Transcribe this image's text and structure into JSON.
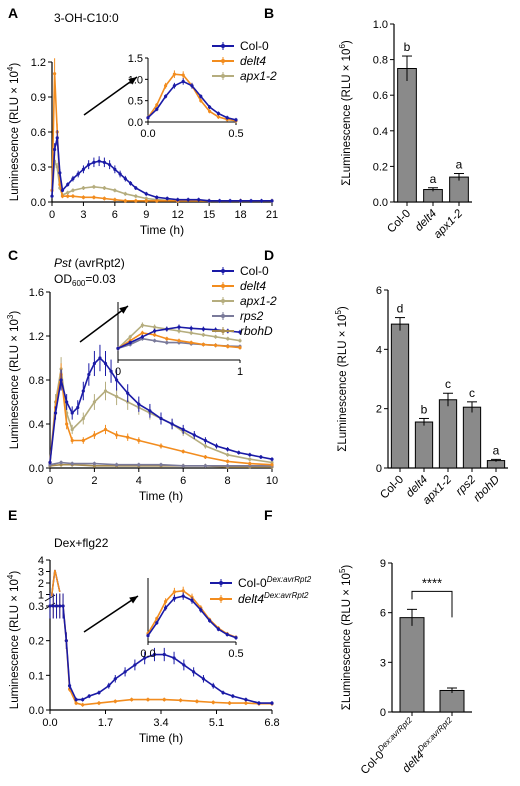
{
  "panels": {
    "A": {
      "letter": "A",
      "condition": "3-OH-C10:0"
    },
    "B": {
      "letter": "B"
    },
    "C": {
      "letter": "C",
      "condition_italic": "Pst",
      "condition_rest": " (avrRpt2)",
      "od_main": "OD",
      "od_sub": "600",
      "od_value": "=0.03"
    },
    "D": {
      "letter": "D"
    },
    "E": {
      "letter": "E",
      "condition": "Dex+flg22"
    },
    "F": {
      "letter": "F"
    }
  },
  "chart_data": [
    {
      "id": "A",
      "type": "line",
      "xlabel": "Time (h)",
      "ylabel_main": "Luminescence (RLU × 10",
      "ylabel_sup": "4",
      "ylabel_end": ")",
      "xlim": [
        0,
        21
      ],
      "ylim": [
        0,
        1.2
      ],
      "xticks": [
        "0",
        "3",
        "6",
        "9",
        "12",
        "15",
        "18",
        "21"
      ],
      "yticks": [
        "0.0",
        "0.3",
        "0.6",
        "0.9",
        "1.2"
      ],
      "series": [
        {
          "name": "Col-0",
          "color": "#1a1aa6",
          "x": [
            0,
            0.25,
            0.5,
            0.75,
            1,
            1.5,
            2,
            2.5,
            3,
            3.5,
            4,
            4.5,
            5,
            5.5,
            6,
            6.5,
            7,
            7.5,
            8,
            9,
            10,
            11,
            12,
            13,
            14,
            15,
            16,
            17,
            18,
            19,
            20,
            21
          ],
          "y": [
            0.05,
            0.45,
            0.55,
            0.25,
            0.1,
            0.15,
            0.2,
            0.24,
            0.28,
            0.32,
            0.34,
            0.35,
            0.34,
            0.32,
            0.28,
            0.24,
            0.2,
            0.16,
            0.12,
            0.07,
            0.04,
            0.03,
            0.02,
            0.02,
            0.02,
            0.01,
            0.01,
            0.01,
            0.01,
            0.01,
            0.01,
            0.01
          ]
        },
        {
          "name": "delt4",
          "color": "#f28c1e",
          "x": [
            0,
            0.25,
            0.5,
            0.75,
            1,
            1.5,
            2,
            3,
            4,
            5,
            6,
            7,
            8,
            9,
            10,
            12,
            15,
            18,
            21
          ],
          "y": [
            0.1,
            1.1,
            0.6,
            0.15,
            0.05,
            0.05,
            0.05,
            0.04,
            0.04,
            0.03,
            0.02,
            0.01,
            0.01,
            0.01,
            0.01,
            0.01,
            0.01,
            0.01,
            0.01
          ]
        },
        {
          "name": "apx1-2",
          "color": "#b5ad7e",
          "x": [
            0,
            0.25,
            0.5,
            0.75,
            1,
            1.5,
            2,
            3,
            4,
            5,
            6,
            7,
            8,
            9,
            10,
            12,
            15,
            18,
            21
          ],
          "y": [
            0.05,
            0.35,
            0.3,
            0.12,
            0.06,
            0.08,
            0.1,
            0.12,
            0.13,
            0.12,
            0.1,
            0.07,
            0.05,
            0.03,
            0.02,
            0.01,
            0.01,
            0.01,
            0.01
          ]
        }
      ],
      "inset": {
        "xlim": [
          0,
          0.5
        ],
        "ylim": [
          0,
          1.5
        ],
        "xticks": [
          "0.0",
          "0.5"
        ],
        "yticks": [
          "0.0",
          "0.5",
          "1.0",
          "1.5"
        ],
        "series": [
          {
            "color": "#1a1aa6",
            "x": [
              0,
              0.05,
              0.1,
              0.15,
              0.2,
              0.25,
              0.3,
              0.35,
              0.4,
              0.45,
              0.5
            ],
            "y": [
              0.1,
              0.3,
              0.6,
              0.85,
              0.95,
              0.85,
              0.6,
              0.35,
              0.2,
              0.1,
              0.05
            ]
          },
          {
            "color": "#f28c1e",
            "x": [
              0,
              0.05,
              0.1,
              0.15,
              0.2,
              0.25,
              0.3,
              0.35,
              0.4,
              0.45,
              0.5
            ],
            "y": [
              0.1,
              0.4,
              0.85,
              1.12,
              1.1,
              0.85,
              0.5,
              0.25,
              0.12,
              0.06,
              0.03
            ]
          }
        ]
      }
    },
    {
      "id": "B",
      "type": "bar",
      "ylabel_main": "ΣLuminescence (RLU × 10",
      "ylabel_sup": "6",
      "ylabel_end": ")",
      "ylim": [
        0,
        1.0
      ],
      "yticks": [
        "0.0",
        "0.2",
        "0.4",
        "0.6",
        "0.8",
        "1.0"
      ],
      "categories": [
        "Col-0",
        "delt4",
        "apx1-2"
      ],
      "italic": [
        false,
        true,
        true
      ],
      "values": [
        0.75,
        0.07,
        0.14
      ],
      "errors": [
        0.07,
        0.01,
        0.02
      ],
      "letters": [
        "b",
        "a",
        "a"
      ]
    },
    {
      "id": "C",
      "type": "line",
      "xlabel": "Time (h)",
      "ylabel_main": "Luminescence (RLU × 10",
      "ylabel_sup": "3",
      "ylabel_end": ")",
      "xlim": [
        0,
        10
      ],
      "ylim": [
        0,
        1.6
      ],
      "xticks": [
        "0",
        "2",
        "4",
        "6",
        "8",
        "10"
      ],
      "yticks": [
        "0.0",
        "0.4",
        "0.8",
        "1.2",
        "1.6"
      ],
      "series": [
        {
          "name": "Col-0",
          "color": "#1a1aa6",
          "x": [
            0,
            0.25,
            0.5,
            0.75,
            1,
            1.25,
            1.5,
            1.75,
            2,
            2.25,
            2.5,
            2.75,
            3,
            3.5,
            4,
            4.5,
            5,
            5.5,
            6,
            6.5,
            7,
            7.5,
            8,
            8.5,
            9,
            9.5,
            10
          ],
          "y": [
            0.05,
            0.5,
            0.8,
            0.6,
            0.5,
            0.55,
            0.7,
            0.85,
            0.95,
            1.0,
            0.95,
            0.88,
            0.8,
            0.68,
            0.58,
            0.52,
            0.45,
            0.4,
            0.35,
            0.3,
            0.25,
            0.2,
            0.17,
            0.14,
            0.12,
            0.1,
            0.08
          ]
        },
        {
          "name": "delt4",
          "color": "#f28c1e",
          "x": [
            0,
            0.25,
            0.5,
            0.75,
            1,
            1.5,
            2,
            2.5,
            3,
            3.5,
            4,
            5,
            6,
            7,
            8,
            9,
            10
          ],
          "y": [
            0.05,
            0.55,
            0.85,
            0.4,
            0.25,
            0.25,
            0.3,
            0.35,
            0.3,
            0.28,
            0.25,
            0.2,
            0.15,
            0.1,
            0.06,
            0.04,
            0.03
          ]
        },
        {
          "name": "apx1-2",
          "color": "#b5ad7e",
          "x": [
            0,
            0.25,
            0.5,
            0.75,
            1,
            1.5,
            2,
            2.5,
            3,
            3.5,
            4,
            4.5,
            5,
            5.5,
            6,
            7,
            8,
            9,
            10
          ],
          "y": [
            0.05,
            0.6,
            0.9,
            0.5,
            0.35,
            0.45,
            0.6,
            0.7,
            0.65,
            0.6,
            0.55,
            0.5,
            0.45,
            0.4,
            0.33,
            0.2,
            0.12,
            0.08,
            0.05
          ]
        },
        {
          "name": "rps2",
          "color": "#7a7a9a",
          "x": [
            0,
            0.5,
            1,
            2,
            3,
            4,
            5,
            6,
            7,
            8,
            9,
            10
          ],
          "y": [
            0.03,
            0.05,
            0.04,
            0.04,
            0.03,
            0.03,
            0.03,
            0.02,
            0.02,
            0.02,
            0.02,
            0.02
          ]
        },
        {
          "name": "rbohD",
          "color": "#a88c4e",
          "x": [
            0,
            0.5,
            1,
            2,
            3,
            4,
            5,
            6,
            7,
            8,
            9,
            10
          ],
          "y": [
            0.02,
            0.03,
            0.03,
            0.02,
            0.02,
            0.02,
            0.02,
            0.02,
            0.02,
            0.01,
            0.01,
            0.01
          ]
        }
      ],
      "inset": {
        "xlim": [
          0,
          1
        ],
        "ylim": [
          0,
          1.5
        ],
        "xticks": [
          "0",
          "1"
        ],
        "yticks": [],
        "series": [
          {
            "color": "#1a1aa6",
            "x": [
              0,
              0.1,
              0.2,
              0.3,
              0.4,
              0.5,
              0.6,
              0.7,
              0.8,
              0.9,
              1
            ],
            "y": [
              0.3,
              0.45,
              0.6,
              0.75,
              0.8,
              0.85,
              0.82,
              0.8,
              0.78,
              0.75,
              0.72
            ]
          },
          {
            "color": "#f28c1e",
            "x": [
              0,
              0.1,
              0.2,
              0.3,
              0.4,
              0.5,
              0.6,
              0.7,
              0.8,
              0.9,
              1
            ],
            "y": [
              0.3,
              0.5,
              0.7,
              0.65,
              0.55,
              0.5,
              0.45,
              0.4,
              0.38,
              0.35,
              0.32
            ]
          },
          {
            "color": "#b5ad7e",
            "x": [
              0,
              0.1,
              0.2,
              0.3,
              0.4,
              0.5,
              0.6,
              0.7,
              0.8,
              0.9,
              1
            ],
            "y": [
              0.3,
              0.6,
              0.9,
              0.85,
              0.8,
              0.75,
              0.7,
              0.65,
              0.6,
              0.55,
              0.5
            ]
          },
          {
            "color": "#7a7a9a",
            "x": [
              0,
              0.1,
              0.2,
              0.3,
              0.4,
              0.5,
              0.6,
              0.7,
              0.8,
              0.9,
              1
            ],
            "y": [
              0.3,
              0.4,
              0.55,
              0.5,
              0.45,
              0.45,
              0.42,
              0.4,
              0.38,
              0.36,
              0.35
            ]
          }
        ]
      }
    },
    {
      "id": "D",
      "type": "bar",
      "ylabel_main": "ΣLuminescence (RLU × 10",
      "ylabel_sup": "5",
      "ylabel_end": ")",
      "ylim": [
        0,
        6
      ],
      "yticks": [
        "0",
        "2",
        "4",
        "6"
      ],
      "categories": [
        "Col-0",
        "delt4",
        "apx1-2",
        "rps2",
        "rbohD"
      ],
      "italic": [
        false,
        true,
        true,
        true,
        true
      ],
      "values": [
        4.85,
        1.55,
        2.3,
        2.05,
        0.25
      ],
      "errors": [
        0.22,
        0.12,
        0.22,
        0.18,
        0.04
      ],
      "letters": [
        "d",
        "b",
        "c",
        "c",
        "a"
      ]
    },
    {
      "id": "E",
      "type": "line",
      "xlabel": "Time (h)",
      "ylabel_main": "Luminescence (RLU × 10",
      "ylabel_sup": "4",
      "ylabel_end": ")",
      "xlim": [
        0,
        6.8
      ],
      "ylim": [
        0,
        0.3
      ],
      "ylim_upper": [
        0,
        4
      ],
      "xticks": [
        "0.0",
        "1.7",
        "3.4",
        "5.1",
        "6.8"
      ],
      "yticks": [
        "0.0",
        "0.1",
        "0.2",
        "0.3"
      ],
      "yticks_upper": [
        "0",
        "1",
        "2",
        "3",
        "4"
      ],
      "series": [
        {
          "name": "Col-0",
          "sup": "Dex:avrRpt2",
          "color": "#1a1aa6",
          "x": [
            0,
            0.1,
            0.2,
            0.3,
            0.4,
            0.5,
            0.6,
            0.8,
            1.0,
            1.2,
            1.5,
            1.8,
            2.0,
            2.3,
            2.6,
            2.9,
            3.2,
            3.5,
            3.8,
            4.1,
            4.4,
            4.7,
            5.0,
            5.3,
            5.6,
            6.0,
            6.4,
            6.8
          ],
          "y": [
            0.3,
            0.32,
            0.36,
            0.33,
            0.3,
            0.2,
            0.07,
            0.03,
            0.03,
            0.04,
            0.05,
            0.07,
            0.09,
            0.11,
            0.13,
            0.15,
            0.16,
            0.16,
            0.15,
            0.13,
            0.11,
            0.09,
            0.07,
            0.05,
            0.04,
            0.03,
            0.02,
            0.02
          ]
        },
        {
          "name": "delt4",
          "sup": "Dex:avrRpt2",
          "color": "#f28c1e",
          "x": [
            0,
            0.1,
            0.2,
            0.3,
            0.4,
            0.5,
            0.6,
            0.8,
            1.0,
            1.5,
            2.0,
            2.5,
            3.0,
            3.5,
            4.0,
            4.5,
            5.0,
            5.5,
            6.0,
            6.4,
            6.8
          ],
          "y": [
            0.3,
            0.32,
            0.35,
            0.33,
            0.3,
            0.2,
            0.06,
            0.02,
            0.015,
            0.02,
            0.025,
            0.03,
            0.03,
            0.03,
            0.028,
            0.025,
            0.022,
            0.02,
            0.02,
            0.018,
            0.018
          ]
        }
      ],
      "inset": {
        "xlim": [
          0,
          0.5
        ],
        "ylim": [
          0,
          3
        ],
        "xticks": [
          "0.0",
          "0.5"
        ],
        "yticks": [],
        "series": [
          {
            "color": "#1a1aa6",
            "x": [
              0,
              0.05,
              0.1,
              0.15,
              0.2,
              0.25,
              0.3,
              0.35,
              0.4,
              0.45,
              0.5
            ],
            "y": [
              0.3,
              0.9,
              1.6,
              2.05,
              2.15,
              1.95,
              1.5,
              1.0,
              0.6,
              0.35,
              0.2
            ]
          },
          {
            "color": "#f28c1e",
            "x": [
              0,
              0.05,
              0.1,
              0.15,
              0.2,
              0.25,
              0.3,
              0.35,
              0.4,
              0.45,
              0.5
            ],
            "y": [
              0.4,
              1.1,
              1.9,
              2.35,
              2.4,
              2.1,
              1.6,
              1.05,
              0.65,
              0.38,
              0.22
            ]
          }
        ]
      }
    },
    {
      "id": "F",
      "type": "bar",
      "ylabel_main": "ΣLuminescence (RLU × 10",
      "ylabel_sup": "5",
      "ylabel_end": ")",
      "ylim": [
        0,
        9
      ],
      "yticks": [
        "0",
        "3",
        "6",
        "9"
      ],
      "categories": [
        "Col-0",
        "delt4"
      ],
      "category_sup": [
        "Dex:avrRpt2",
        "Dex:avrRpt2"
      ],
      "italic": [
        false,
        true
      ],
      "values": [
        5.7,
        1.3
      ],
      "errors": [
        0.5,
        0.15
      ],
      "significance": "****"
    }
  ]
}
